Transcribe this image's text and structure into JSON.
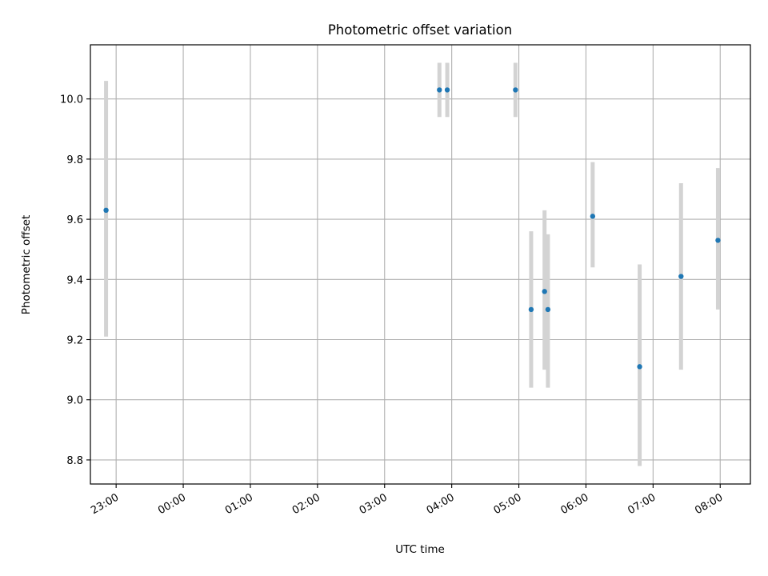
{
  "chart_data": {
    "type": "scatter",
    "title": "Photometric offset variation",
    "xlabel": "UTC time",
    "ylabel": "Photometric offset",
    "x_axis": {
      "type": "time",
      "range": [
        "22:37",
        "08:27"
      ],
      "ticks": [
        "23:00",
        "00:00",
        "01:00",
        "02:00",
        "03:00",
        "04:00",
        "05:00",
        "06:00",
        "07:00",
        "08:00"
      ]
    },
    "y_axis": {
      "range": [
        8.72,
        10.18
      ],
      "ticks": [
        "8.8",
        "9.0",
        "9.2",
        "9.4",
        "9.6",
        "9.8",
        "10.0"
      ]
    },
    "grid": true,
    "series": [
      {
        "marker_color": "#1f77b4",
        "errorbar_color": "#d3d3d3",
        "points": [
          {
            "x": "22:51",
            "y": 9.63,
            "ylow": 9.21,
            "yhigh": 10.06
          },
          {
            "x": "03:49",
            "y": 10.03,
            "ylow": 9.94,
            "yhigh": 10.12
          },
          {
            "x": "03:56",
            "y": 10.03,
            "ylow": 9.94,
            "yhigh": 10.12
          },
          {
            "x": "04:57",
            "y": 10.03,
            "ylow": 9.94,
            "yhigh": 10.12
          },
          {
            "x": "05:11",
            "y": 9.3,
            "ylow": 9.04,
            "yhigh": 9.56
          },
          {
            "x": "05:23",
            "y": 9.36,
            "ylow": 9.1,
            "yhigh": 9.63
          },
          {
            "x": "05:26",
            "y": 9.3,
            "ylow": 9.04,
            "yhigh": 9.55
          },
          {
            "x": "06:06",
            "y": 9.61,
            "ylow": 9.44,
            "yhigh": 9.79
          },
          {
            "x": "06:48",
            "y": 9.11,
            "ylow": 8.78,
            "yhigh": 9.45
          },
          {
            "x": "07:25",
            "y": 9.41,
            "ylow": 9.1,
            "yhigh": 9.72
          },
          {
            "x": "07:58",
            "y": 9.53,
            "ylow": 9.3,
            "yhigh": 9.77
          }
        ]
      }
    ]
  }
}
